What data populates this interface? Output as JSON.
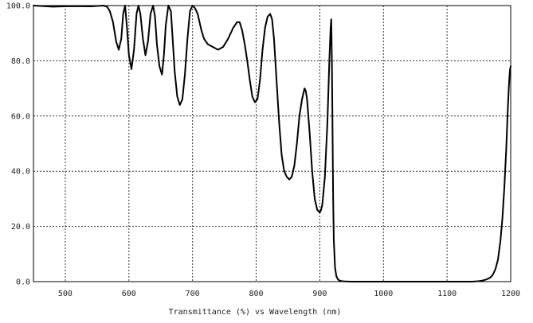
{
  "chart_data": {
    "type": "line",
    "xlabel": "Transmittance (%)  vs  Wavelength (nm)",
    "ylabel": "",
    "xlim": [
      450,
      1200
    ],
    "ylim": [
      0,
      100
    ],
    "x_ticks": [
      500,
      600,
      700,
      800,
      900,
      1000,
      1100,
      1200
    ],
    "y_ticks": [
      0,
      20,
      40,
      60,
      80,
      100
    ],
    "x_tick_labels": [
      "500",
      "600",
      "700",
      "800",
      "900",
      "1000",
      "1100",
      "1200"
    ],
    "y_tick_labels": [
      "0.0",
      "20.0",
      "40.0",
      "60.0",
      "80.0",
      "100.0"
    ],
    "grid": true,
    "grid_style": "dotted",
    "series": [
      {
        "color": "#000000",
        "x": [
          450,
          480,
          510,
          540,
          560,
          566,
          570,
          575,
          580,
          584,
          588,
          591,
          594,
          597,
          600,
          604,
          608,
          612,
          615,
          618,
          622,
          626,
          630,
          634,
          638,
          641,
          644,
          648,
          652,
          655,
          658,
          662,
          666,
          669,
          672,
          676,
          680,
          684,
          688,
          692,
          696,
          700,
          704,
          708,
          711,
          714,
          718,
          724,
          732,
          740,
          748,
          756,
          764,
          770,
          774,
          778,
          782,
          786,
          790,
          794,
          798,
          802,
          806,
          810,
          814,
          818,
          822,
          825,
          828,
          832,
          836,
          840,
          844,
          848,
          852,
          856,
          860,
          864,
          868,
          872,
          876,
          878,
          880,
          884,
          888,
          892,
          896,
          900,
          902,
          904,
          908,
          912,
          915,
          917,
          918,
          919,
          920,
          921,
          922,
          924,
          926,
          928,
          930,
          934,
          938,
          944,
          950,
          960,
          980,
          1000,
          1050,
          1100,
          1140,
          1150,
          1156,
          1162,
          1168,
          1172,
          1176,
          1180,
          1184,
          1187,
          1190,
          1193,
          1195,
          1197,
          1198,
          1199,
          1200
        ],
        "y": [
          100,
          99.6,
          99.8,
          99.7,
          100,
          99.5,
          98,
          94,
          87,
          84,
          88,
          97,
          100,
          92,
          82,
          77,
          84,
          97,
          100,
          97,
          88,
          82,
          87,
          97,
          100,
          96,
          86,
          78,
          75,
          82,
          93,
          100,
          98,
          87,
          76,
          67,
          64,
          66,
          75,
          88,
          98,
          100,
          99,
          97,
          94,
          91,
          88,
          86,
          85,
          84,
          85,
          88,
          92,
          94,
          94,
          91,
          86,
          80,
          73,
          67,
          65,
          66,
          73,
          84,
          92,
          96,
          97,
          95,
          88,
          73,
          58,
          46,
          40,
          38,
          37,
          38,
          42,
          50,
          60,
          66,
          70,
          69,
          66,
          54,
          40,
          30,
          26,
          25,
          26,
          28,
          38,
          58,
          80,
          92,
          95,
          80,
          55,
          30,
          15,
          5,
          2,
          1,
          0.5,
          0.2,
          0.1,
          0.05,
          0,
          0,
          0,
          0,
          0,
          0,
          0,
          0.2,
          0.4,
          0.8,
          1.5,
          2.5,
          4.5,
          8,
          15,
          23,
          34,
          48,
          60,
          70,
          74,
          77,
          78
        ]
      }
    ]
  }
}
